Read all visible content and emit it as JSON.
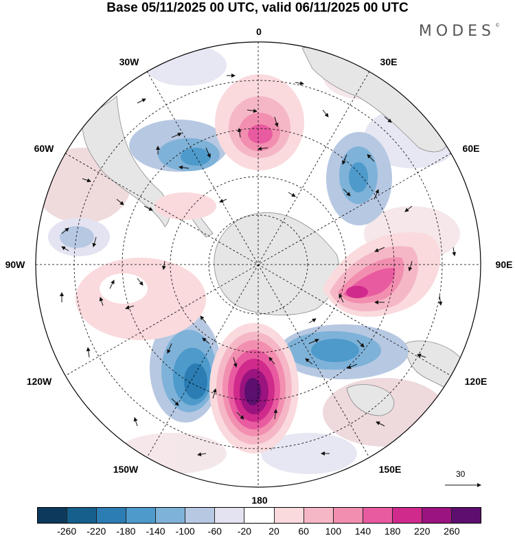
{
  "title": "Base 05/11/2025 00 UTC, valid 06/11/2025 00 UTC",
  "brand": "MODES",
  "brand_mark": "©",
  "map": {
    "projection": "south-polar-stereographic",
    "longitude_labels": {
      "top": "0",
      "top_right": "30E",
      "right_upper": "60E",
      "right": "90E",
      "right_lower": "120E",
      "bottom_right": "150E",
      "bottom": "180",
      "bottom_left": "150W",
      "left_lower": "120W",
      "left": "90W",
      "left_upper": "60W",
      "top_left": "30W"
    },
    "reference_vector": "30",
    "colors": {
      "land": "#e6e6e6",
      "coast": "#888888",
      "grid": "#000000",
      "arrow": "#111111",
      "background": "#ffffff"
    }
  },
  "colorbar": {
    "ticks": [
      "-260",
      "-220",
      "-180",
      "-140",
      "-100",
      "-60",
      "-20",
      "20",
      "60",
      "100",
      "140",
      "180",
      "220",
      "260"
    ],
    "colors": [
      "#0d3a5c",
      "#155f8c",
      "#2b7db4",
      "#4d9acb",
      "#7fb2d8",
      "#b7c8e2",
      "#e3e3f1",
      "#ffffff",
      "#fadadd",
      "#f5b7c6",
      "#f28fb0",
      "#e95ba0",
      "#cf2a8c",
      "#9a137f",
      "#5c0f6e"
    ]
  }
}
